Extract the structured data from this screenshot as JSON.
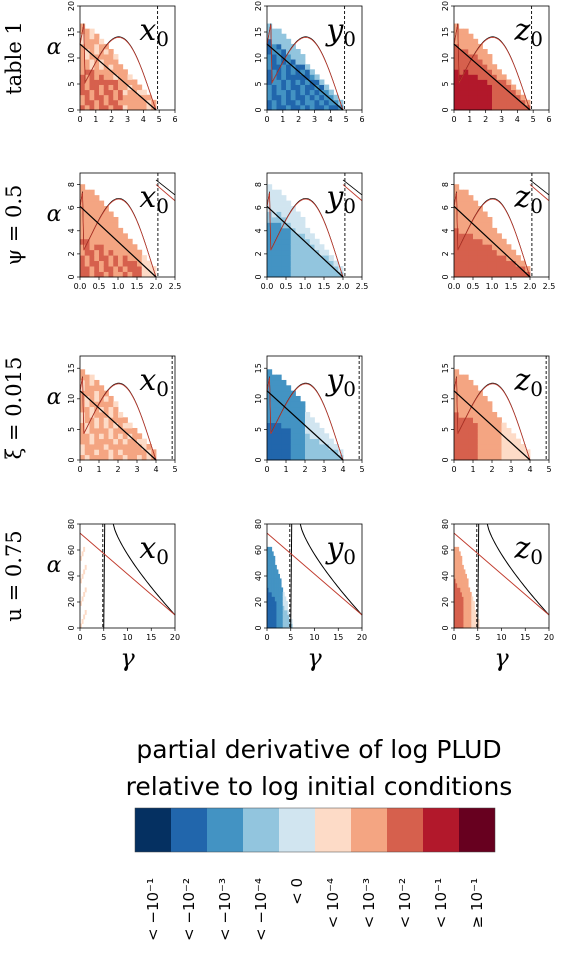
{
  "chart_data": {
    "type": "heatmap",
    "row_labels": [
      "table 1",
      "ψ = 0.5",
      "ξ = 0.015",
      "u = 0.75"
    ],
    "column_labels": [
      "x0",
      "y0",
      "z0"
    ],
    "ylabel": "α",
    "xlabel": "γ",
    "rows": [
      {
        "xlim": [
          0,
          6
        ],
        "ylim": [
          0,
          20
        ],
        "xticks": [
          "0",
          "1",
          "2",
          "3",
          "4",
          "5",
          "6"
        ],
        "yticks": [
          "0",
          "5",
          "10",
          "15",
          "20"
        ],
        "alpha_max": 17.6,
        "gamma_max": 4.8,
        "dashed_x": 4.9,
        "extra_lines": []
      },
      {
        "xlim": [
          0,
          2.5
        ],
        "ylim": [
          0,
          9
        ],
        "xticks": [
          "0.0",
          "0.5",
          "1.0",
          "1.5",
          "2.0",
          "2.5"
        ],
        "yticks": [
          "0",
          "2",
          "4",
          "6",
          "8"
        ],
        "alpha_max": 8.5,
        "gamma_max": 2.0,
        "dashed_x": 2.05,
        "extra_lines": [
          {
            "x0": 2.0,
            "y0": 8.4,
            "x1": 2.5,
            "y1": 7.1,
            "color": "black"
          },
          {
            "x0": 2.0,
            "y0": 8.0,
            "x1": 2.5,
            "y1": 6.6,
            "color": "red"
          }
        ]
      },
      {
        "xlim": [
          0,
          5
        ],
        "ylim": [
          0,
          17
        ],
        "xticks": [
          "0",
          "1",
          "2",
          "3",
          "4",
          "5"
        ],
        "yticks": [
          "0",
          "5",
          "10",
          "15"
        ],
        "alpha_max": 15.7,
        "gamma_max": 4.0,
        "dashed_x": 4.85,
        "extra_lines": []
      },
      {
        "xlim": [
          0,
          20
        ],
        "ylim": [
          0,
          80
        ],
        "xticks": [
          "0",
          "5",
          "10",
          "15",
          "20"
        ],
        "yticks": [
          "0",
          "20",
          "40",
          "60",
          "80"
        ],
        "alpha_max": 78,
        "gamma_max": 5.3,
        "dashed_x": 4.8,
        "extra_lines": [
          {
            "x0": 0,
            "y0": 73,
            "x1": 20,
            "y1": 10,
            "color": "red"
          }
        ]
      }
    ],
    "legend": {
      "title_line1": "partial derivative of log PLUD",
      "title_line2": "relative to log initial conditions",
      "colors": [
        "#053061",
        "#2166ac",
        "#4393c3",
        "#92c5de",
        "#d1e5f0",
        "#fddbc7",
        "#f4a582",
        "#d6604d",
        "#b2182b",
        "#67001f"
      ],
      "labels": [
        "< −10⁻¹",
        "< −10⁻²",
        "< −10⁻³",
        "< −10⁻⁴",
        "< 0",
        "< 10⁻⁴",
        "< 10⁻³",
        "< 10⁻²",
        "< 10⁻¹",
        "≥ 10⁻¹"
      ]
    }
  }
}
